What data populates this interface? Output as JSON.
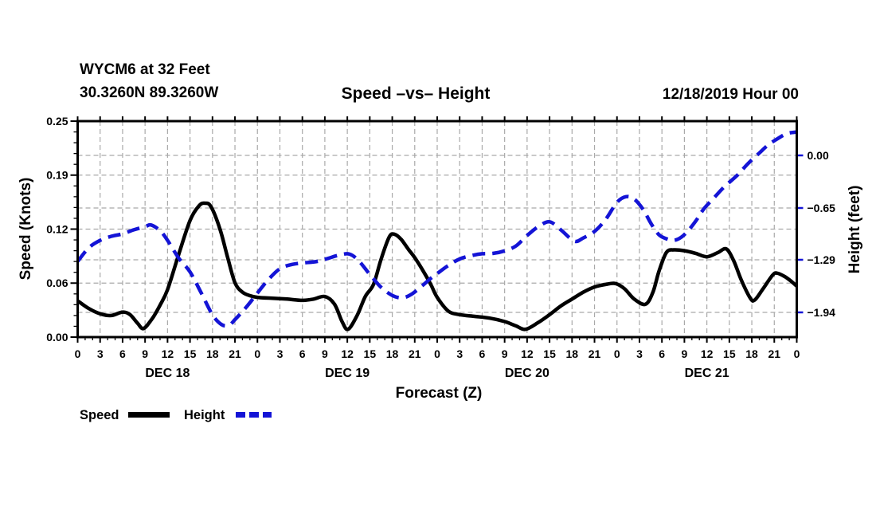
{
  "page": {
    "background": "#ffffff"
  },
  "header": {
    "station": "WYCM6 at 32 Feet",
    "coordinates": "30.3260N 89.3260W",
    "title": "Speed –vs– Height",
    "run_date": "12/18/2019 Hour 00"
  },
  "legend": {
    "speed_label": "Speed",
    "height_label": "Height"
  },
  "colors": {
    "speed_line": "#000000",
    "height_line": "#1414d6",
    "grid": "#a9a9a9",
    "axis": "#000000"
  },
  "chart_data": {
    "type": "line",
    "title": "Speed –vs– Height",
    "station": "WYCM6 at 32 Feet",
    "location": "30.3260N 89.3260W",
    "forecast_start": "12/18/2019 Hour 00",
    "grid": {
      "style": "dashed",
      "on": true
    },
    "legend_position": "bottom-left",
    "x_axis": {
      "label": "Forecast (Z)",
      "unit": "hours",
      "range": [
        0,
        96
      ],
      "major_tick_interval": 3,
      "minor_tick_interval": 1,
      "tick_label_cycle": [
        "0",
        "3",
        "6",
        "9",
        "12",
        "15",
        "18",
        "21"
      ],
      "final_tick_label": "0",
      "day_labels": [
        {
          "label": "DEC 18",
          "center_hour": 12
        },
        {
          "label": "DEC 19",
          "center_hour": 36
        },
        {
          "label": "DEC 20",
          "center_hour": 60
        },
        {
          "label": "DEC 21",
          "center_hour": 84
        }
      ]
    },
    "y_left": {
      "label": "Speed (Knots)",
      "range": [
        0,
        0.25
      ],
      "minor_tick_step": 0.0125,
      "ticks": [
        {
          "value": 0.25,
          "label": "0.25"
        },
        {
          "value": 0.1875,
          "label": "0.19"
        },
        {
          "value": 0.125,
          "label": "0.12"
        },
        {
          "value": 0.0625,
          "label": "0.06"
        },
        {
          "value": 0.0,
          "label": "0.00"
        }
      ]
    },
    "y_right": {
      "label": "Height (feet)",
      "range": [
        -2.245,
        0.424
      ],
      "ticks": [
        {
          "value": 0.0,
          "label": "0.00"
        },
        {
          "value": -0.65,
          "label": "−0.65"
        },
        {
          "value": -1.29,
          "label": "−1.29"
        },
        {
          "value": -1.94,
          "label": "−1.94"
        }
      ]
    },
    "series": [
      {
        "name": "Speed",
        "axis": "left",
        "units": "knots",
        "color": "#000000",
        "line_style": "solid",
        "points": [
          [
            0,
            0.042
          ],
          [
            1.5,
            0.033
          ],
          [
            3,
            0.027
          ],
          [
            4.5,
            0.025
          ],
          [
            6,
            0.029
          ],
          [
            7,
            0.026
          ],
          [
            8,
            0.016
          ],
          [
            8.8,
            0.01
          ],
          [
            10,
            0.022
          ],
          [
            11,
            0.037
          ],
          [
            12,
            0.055
          ],
          [
            13.5,
            0.096
          ],
          [
            15,
            0.135
          ],
          [
            16.2,
            0.152
          ],
          [
            17,
            0.155
          ],
          [
            17.8,
            0.151
          ],
          [
            19,
            0.125
          ],
          [
            20,
            0.093
          ],
          [
            21,
            0.063
          ],
          [
            22,
            0.052
          ],
          [
            23,
            0.048
          ],
          [
            24,
            0.046
          ],
          [
            26,
            0.045
          ],
          [
            28,
            0.044
          ],
          [
            30,
            0.0425
          ],
          [
            31.5,
            0.044
          ],
          [
            33,
            0.047
          ],
          [
            34.3,
            0.038
          ],
          [
            35.3,
            0.018
          ],
          [
            36.1,
            0.009
          ],
          [
            37.3,
            0.025
          ],
          [
            38.4,
            0.047
          ],
          [
            39.5,
            0.061
          ],
          [
            40.5,
            0.09
          ],
          [
            41.6,
            0.116
          ],
          [
            42.3,
            0.119
          ],
          [
            43.2,
            0.113
          ],
          [
            44.2,
            0.101
          ],
          [
            45,
            0.092
          ],
          [
            46.3,
            0.074
          ],
          [
            47.2,
            0.06
          ],
          [
            48,
            0.046
          ],
          [
            49.5,
            0.03
          ],
          [
            51,
            0.026
          ],
          [
            53,
            0.024
          ],
          [
            55,
            0.022
          ],
          [
            57,
            0.018
          ],
          [
            58.5,
            0.013
          ],
          [
            59.8,
            0.009
          ],
          [
            61.5,
            0.017
          ],
          [
            63,
            0.026
          ],
          [
            64.5,
            0.036
          ],
          [
            66,
            0.044
          ],
          [
            67.5,
            0.052
          ],
          [
            69,
            0.058
          ],
          [
            70.5,
            0.061
          ],
          [
            71.8,
            0.062
          ],
          [
            73,
            0.056
          ],
          [
            74.3,
            0.044
          ],
          [
            75.8,
            0.038
          ],
          [
            76.8,
            0.052
          ],
          [
            77.6,
            0.076
          ],
          [
            78.6,
            0.098
          ],
          [
            79.6,
            0.101
          ],
          [
            81,
            0.1
          ],
          [
            82.5,
            0.097
          ],
          [
            84,
            0.093
          ],
          [
            85.5,
            0.098
          ],
          [
            86.6,
            0.102
          ],
          [
            87.6,
            0.088
          ],
          [
            88.6,
            0.066
          ],
          [
            89.8,
            0.045
          ],
          [
            90.4,
            0.043
          ],
          [
            91.5,
            0.056
          ],
          [
            92.8,
            0.072
          ],
          [
            93.4,
            0.074
          ],
          [
            94.4,
            0.07
          ],
          [
            95.2,
            0.065
          ],
          [
            96,
            0.059
          ]
        ]
      },
      {
        "name": "Height",
        "axis": "right",
        "units": "feet",
        "color": "#1414d6",
        "line_style": "dashed",
        "points": [
          [
            0,
            -1.31
          ],
          [
            1.5,
            -1.14
          ],
          [
            3,
            -1.05
          ],
          [
            4.5,
            -1.0
          ],
          [
            6,
            -0.97
          ],
          [
            7.5,
            -0.92
          ],
          [
            9,
            -0.88
          ],
          [
            9.8,
            -0.86
          ],
          [
            11,
            -0.93
          ],
          [
            12,
            -1.05
          ],
          [
            13.5,
            -1.27
          ],
          [
            15,
            -1.44
          ],
          [
            16.5,
            -1.7
          ],
          [
            18,
            -1.97
          ],
          [
            19.2,
            -2.09
          ],
          [
            20.2,
            -2.1
          ],
          [
            21,
            -2.03
          ],
          [
            22,
            -1.93
          ],
          [
            23,
            -1.82
          ],
          [
            24,
            -1.7
          ],
          [
            25.5,
            -1.53
          ],
          [
            27,
            -1.4
          ],
          [
            28.5,
            -1.35
          ],
          [
            30,
            -1.33
          ],
          [
            32,
            -1.31
          ],
          [
            33.5,
            -1.27
          ],
          [
            35,
            -1.23
          ],
          [
            36.3,
            -1.22
          ],
          [
            37.5,
            -1.3
          ],
          [
            39,
            -1.47
          ],
          [
            40.5,
            -1.63
          ],
          [
            42,
            -1.73
          ],
          [
            43.3,
            -1.76
          ],
          [
            44.5,
            -1.72
          ],
          [
            46,
            -1.61
          ],
          [
            47,
            -1.53
          ],
          [
            48,
            -1.46
          ],
          [
            49.5,
            -1.36
          ],
          [
            51,
            -1.28
          ],
          [
            52.5,
            -1.24
          ],
          [
            54,
            -1.215
          ],
          [
            55.5,
            -1.21
          ],
          [
            57,
            -1.18
          ],
          [
            58.5,
            -1.12
          ],
          [
            60,
            -0.99
          ],
          [
            61.5,
            -0.88
          ],
          [
            63,
            -0.82
          ],
          [
            64.5,
            -0.92
          ],
          [
            66.3,
            -1.06
          ],
          [
            67.5,
            -1.02
          ],
          [
            69,
            -0.94
          ],
          [
            70.5,
            -0.79
          ],
          [
            72,
            -0.58
          ],
          [
            73.2,
            -0.51
          ],
          [
            74.3,
            -0.54
          ],
          [
            75.5,
            -0.67
          ],
          [
            76.6,
            -0.85
          ],
          [
            77.6,
            -0.98
          ],
          [
            78.6,
            -1.03
          ],
          [
            79.6,
            -1.05
          ],
          [
            80.6,
            -1.01
          ],
          [
            81.6,
            -0.92
          ],
          [
            82.6,
            -0.8
          ],
          [
            83.6,
            -0.66
          ],
          [
            85,
            -0.52
          ],
          [
            86.3,
            -0.39
          ],
          [
            88,
            -0.25
          ],
          [
            89.5,
            -0.1
          ],
          [
            91,
            0.03
          ],
          [
            92.2,
            0.13
          ],
          [
            93.5,
            0.21
          ],
          [
            94.7,
            0.27
          ],
          [
            96,
            0.29
          ]
        ]
      }
    ]
  }
}
